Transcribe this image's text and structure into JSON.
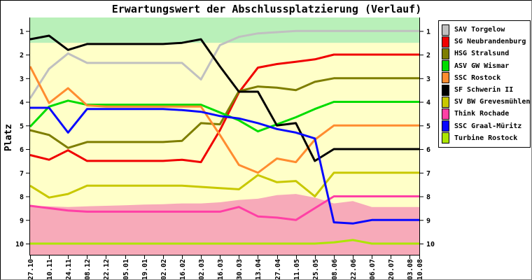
{
  "chart_data": {
    "type": "line",
    "title": "Erwartungswert der Abschlussplatzierung (Verlauf)",
    "ylabel": "Platz",
    "y_axis_inverted": true,
    "ylim": [
      0.45,
      10.47
    ],
    "y_ticks": [
      1,
      2,
      3,
      4,
      5,
      6,
      7,
      8,
      9,
      10
    ],
    "x_tick_labels": [
      "27.10",
      "10.11",
      "24.11",
      "08.12",
      "22.12",
      "05.01",
      "19.01",
      "02.02",
      "16.02",
      "02.03",
      "16.03",
      "30.03",
      "13.04",
      "27.04",
      "11.05",
      "25.05",
      "08.06",
      "22.06",
      "06.07",
      "20.07",
      "03.08",
      "10.08"
    ],
    "x_day_offsets": [
      0,
      14,
      28,
      42,
      56,
      70,
      84,
      98,
      112,
      126,
      140,
      154,
      168,
      182,
      196,
      210,
      224,
      238,
      252,
      266,
      280,
      287
    ],
    "grid": false,
    "legend_position": "right-outside",
    "bands": {
      "plot_background_color": "#FFFFC8",
      "promotion_zone": {
        "to_platz": 1.5,
        "color": "#B9F0B9"
      },
      "relegation_zone": {
        "color": "#F7AAB9",
        "boundary_platz": [
          8.4,
          8.42,
          8.45,
          8.42,
          8.4,
          8.38,
          8.35,
          8.33,
          8.3,
          8.3,
          8.25,
          8.15,
          8.1,
          7.95,
          7.9,
          8.05,
          8.3,
          8.2,
          8.45,
          8.45,
          8.45,
          8.45
        ]
      }
    },
    "series": [
      {
        "name": "SAV Torgelow",
        "color": "#C0C0C0",
        "values": [
          3.85,
          2.6,
          1.95,
          2.35,
          2.35,
          2.35,
          2.35,
          2.35,
          2.35,
          3.05,
          1.6,
          1.25,
          1.1,
          1.05,
          1.0,
          1.0,
          1.0,
          1.0,
          1.0,
          1.0,
          1.0,
          1.0
        ]
      },
      {
        "name": "SG Neubrandenburg",
        "color": "#F00000",
        "values": [
          6.25,
          6.45,
          6.05,
          6.5,
          6.5,
          6.5,
          6.5,
          6.5,
          6.45,
          6.55,
          5.2,
          3.6,
          2.55,
          2.4,
          2.3,
          2.2,
          2.0,
          2.0,
          2.0,
          2.0,
          2.0,
          2.0
        ]
      },
      {
        "name": "HSG Stralsund",
        "color": "#7E7E00",
        "values": [
          5.2,
          5.4,
          5.95,
          5.7,
          5.7,
          5.7,
          5.7,
          5.7,
          5.65,
          4.9,
          4.95,
          3.55,
          3.35,
          3.4,
          3.5,
          3.15,
          3.0,
          3.0,
          3.0,
          3.0,
          3.0,
          3.0
        ]
      },
      {
        "name": "ASV GW Wismar",
        "color": "#00DC00",
        "values": [
          5.05,
          4.2,
          3.95,
          4.12,
          4.12,
          4.12,
          4.12,
          4.12,
          4.12,
          4.12,
          4.45,
          4.78,
          5.25,
          4.95,
          4.65,
          4.3,
          4.0,
          4.0,
          4.0,
          4.0,
          4.0,
          4.0
        ]
      },
      {
        "name": "SSC Rostock",
        "color": "#FF8C30",
        "values": [
          2.5,
          4.05,
          3.42,
          4.15,
          4.2,
          4.2,
          4.2,
          4.2,
          4.2,
          4.2,
          5.4,
          6.67,
          7.0,
          6.4,
          6.55,
          5.6,
          5.0,
          5.0,
          5.0,
          5.0,
          5.0,
          5.0
        ]
      },
      {
        "name": "SF Schwerin II",
        "color": "#000000",
        "values": [
          1.35,
          1.2,
          1.8,
          1.55,
          1.55,
          1.55,
          1.55,
          1.55,
          1.5,
          1.35,
          2.5,
          3.57,
          3.57,
          5.0,
          4.9,
          6.5,
          6.0,
          6.0,
          6.0,
          6.0,
          6.0,
          6.0
        ]
      },
      {
        "name": "SV BW Grevesmühlen",
        "color": "#C8C800",
        "values": [
          7.55,
          8.05,
          7.9,
          7.55,
          7.55,
          7.55,
          7.55,
          7.55,
          7.55,
          7.6,
          7.65,
          7.7,
          7.1,
          7.4,
          7.35,
          8.0,
          7.0,
          7.0,
          7.0,
          7.0,
          7.0,
          7.0
        ]
      },
      {
        "name": "Think Rochade",
        "color": "#FF40A5",
        "values": [
          8.4,
          8.5,
          8.6,
          8.65,
          8.65,
          8.65,
          8.65,
          8.65,
          8.65,
          8.65,
          8.65,
          8.45,
          8.85,
          8.9,
          9.0,
          8.5,
          8.0,
          8.0,
          8.0,
          8.0,
          8.0,
          8.0
        ]
      },
      {
        "name": "SSC Graal-Müritz",
        "color": "#0808FF",
        "values": [
          4.25,
          4.25,
          5.3,
          4.3,
          4.3,
          4.3,
          4.3,
          4.3,
          4.35,
          4.42,
          4.6,
          4.7,
          4.9,
          5.15,
          5.3,
          5.55,
          9.1,
          9.15,
          9.0,
          9.0,
          9.0,
          9.0
        ]
      },
      {
        "name": "Turbine Rostock",
        "color": "#ACE600",
        "values": [
          10,
          10,
          10,
          10,
          10,
          10,
          10,
          10,
          10,
          10,
          10,
          10,
          10,
          10,
          10,
          10,
          9.95,
          9.85,
          10,
          10,
          10,
          10
        ]
      }
    ]
  }
}
